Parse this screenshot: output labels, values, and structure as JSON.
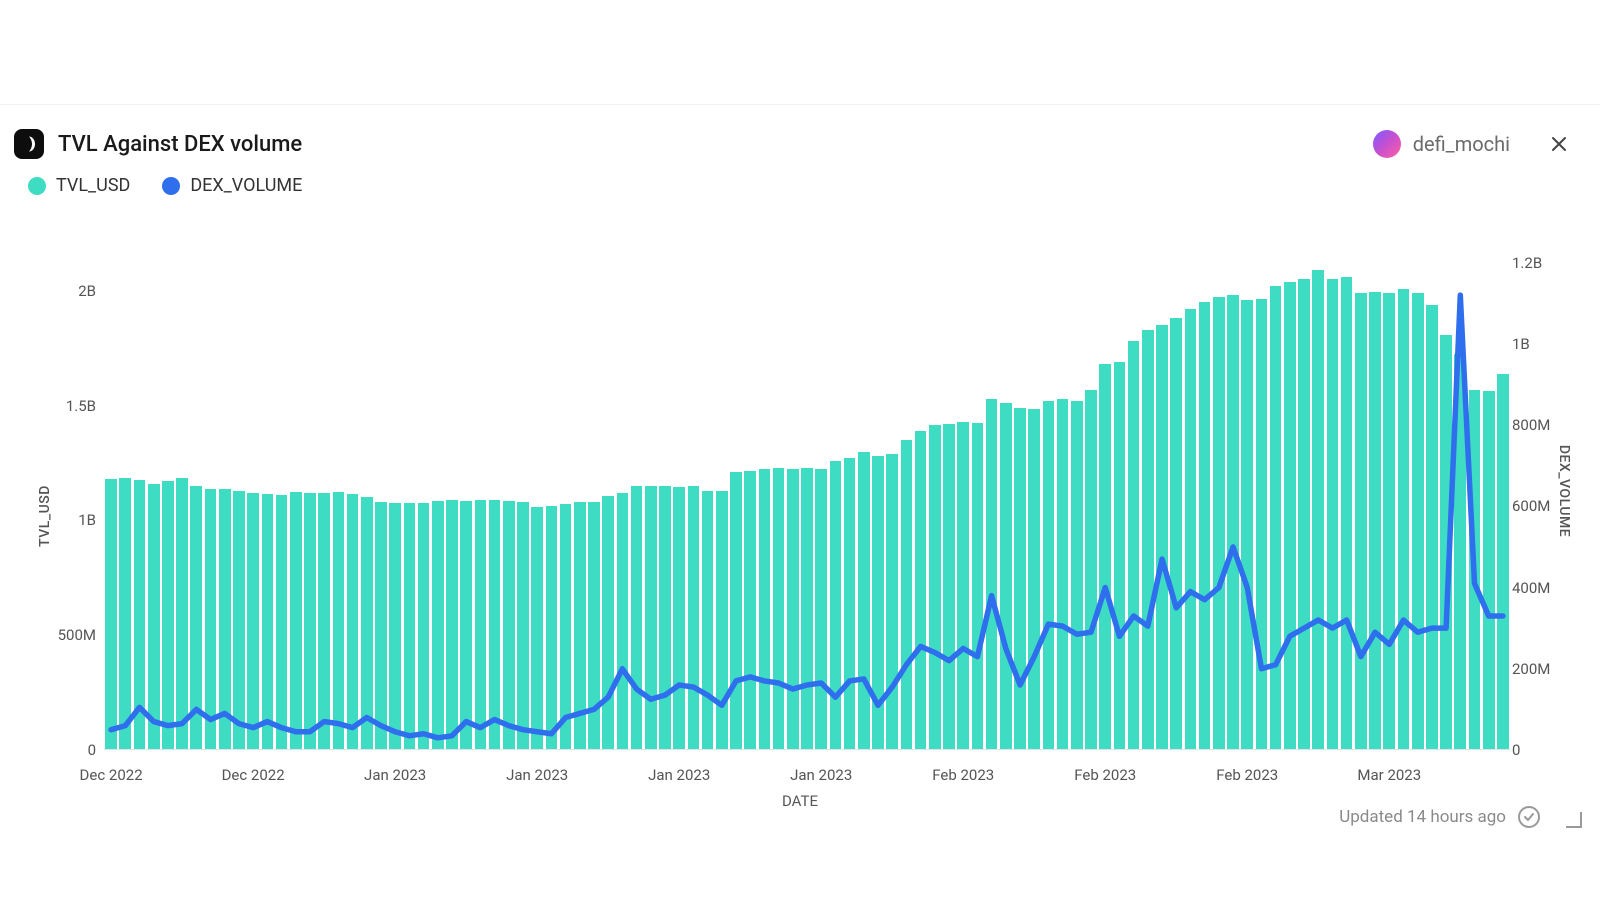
{
  "header": {
    "title": "TVL Against DEX volume",
    "author": "defi_mochi"
  },
  "legend": [
    {
      "label": "TVL_USD",
      "color": "#3fdcc4"
    },
    {
      "label": "DEX_VOLUME",
      "color": "#2f6fed"
    }
  ],
  "chart": {
    "type": "combo-bar-line",
    "background_color": "#ffffff",
    "bar_color": "#3fdcc4",
    "bar_gap_ratio": 0.18,
    "line_color": "#2f6fed",
    "line_width": 2.5,
    "left_axis": {
      "label": "TVL_USD",
      "min": 0,
      "max": 2300000000,
      "ticks": [
        {
          "value": 0,
          "label": "0"
        },
        {
          "value": 500000000,
          "label": "500M"
        },
        {
          "value": 1000000000,
          "label": "1B"
        },
        {
          "value": 1500000000,
          "label": "1.5B"
        },
        {
          "value": 2000000000,
          "label": "2B"
        }
      ]
    },
    "right_axis": {
      "label": "DEX_VOLUME",
      "min": 0,
      "max": 1300000000,
      "ticks": [
        {
          "value": 0,
          "label": "0"
        },
        {
          "value": 200000000,
          "label": "200M"
        },
        {
          "value": 400000000,
          "label": "400M"
        },
        {
          "value": 600000000,
          "label": "600M"
        },
        {
          "value": 800000000,
          "label": "800M"
        },
        {
          "value": 1000000000,
          "label": "1B"
        },
        {
          "value": 1200000000,
          "label": "1.2B"
        }
      ]
    },
    "x_axis": {
      "label": "DATE",
      "ticks": [
        {
          "index": 0,
          "label": "Dec 2022"
        },
        {
          "index": 10,
          "label": "Dec 2022"
        },
        {
          "index": 20,
          "label": "Jan 2023"
        },
        {
          "index": 30,
          "label": "Jan 2023"
        },
        {
          "index": 40,
          "label": "Jan 2023"
        },
        {
          "index": 50,
          "label": "Jan 2023"
        },
        {
          "index": 60,
          "label": "Feb 2023"
        },
        {
          "index": 70,
          "label": "Feb 2023"
        },
        {
          "index": 80,
          "label": "Feb 2023"
        },
        {
          "index": 90,
          "label": "Mar 2023"
        }
      ]
    },
    "tvl_usd": [
      1180000000,
      1185000000,
      1175000000,
      1160000000,
      1170000000,
      1185000000,
      1150000000,
      1135000000,
      1135000000,
      1130000000,
      1120000000,
      1115000000,
      1110000000,
      1125000000,
      1120000000,
      1120000000,
      1125000000,
      1115000000,
      1100000000,
      1080000000,
      1075000000,
      1075000000,
      1075000000,
      1085000000,
      1090000000,
      1085000000,
      1090000000,
      1090000000,
      1085000000,
      1080000000,
      1060000000,
      1065000000,
      1070000000,
      1080000000,
      1080000000,
      1105000000,
      1120000000,
      1150000000,
      1150000000,
      1150000000,
      1145000000,
      1150000000,
      1130000000,
      1130000000,
      1210000000,
      1215000000,
      1225000000,
      1230000000,
      1225000000,
      1230000000,
      1225000000,
      1260000000,
      1270000000,
      1300000000,
      1280000000,
      1290000000,
      1350000000,
      1390000000,
      1415000000,
      1420000000,
      1430000000,
      1425000000,
      1530000000,
      1510000000,
      1490000000,
      1485000000,
      1520000000,
      1530000000,
      1520000000,
      1570000000,
      1680000000,
      1690000000,
      1780000000,
      1830000000,
      1850000000,
      1880000000,
      1920000000,
      1950000000,
      1975000000,
      1980000000,
      1960000000,
      1965000000,
      2020000000,
      2040000000,
      2050000000,
      2090000000,
      2050000000,
      2060000000,
      1990000000,
      1995000000,
      1990000000,
      2010000000,
      1990000000,
      1940000000,
      1810000000,
      1725000000,
      1570000000,
      1565000000,
      1640000000
    ],
    "dex_volume": [
      50000000,
      60000000,
      105000000,
      70000000,
      60000000,
      65000000,
      100000000,
      75000000,
      90000000,
      65000000,
      55000000,
      70000000,
      55000000,
      45000000,
      45000000,
      70000000,
      65000000,
      55000000,
      80000000,
      60000000,
      45000000,
      35000000,
      40000000,
      30000000,
      35000000,
      70000000,
      55000000,
      75000000,
      60000000,
      50000000,
      45000000,
      40000000,
      80000000,
      90000000,
      100000000,
      130000000,
      200000000,
      150000000,
      125000000,
      135000000,
      160000000,
      155000000,
      135000000,
      110000000,
      170000000,
      180000000,
      170000000,
      165000000,
      150000000,
      160000000,
      165000000,
      130000000,
      170000000,
      175000000,
      110000000,
      155000000,
      210000000,
      255000000,
      240000000,
      220000000,
      250000000,
      230000000,
      380000000,
      250000000,
      160000000,
      230000000,
      310000000,
      305000000,
      285000000,
      290000000,
      400000000,
      280000000,
      330000000,
      305000000,
      470000000,
      350000000,
      390000000,
      370000000,
      400000000,
      500000000,
      400000000,
      200000000,
      210000000,
      280000000,
      300000000,
      320000000,
      300000000,
      320000000,
      230000000,
      290000000,
      260000000,
      320000000,
      290000000,
      300000000,
      300000000,
      1120000000,
      410000000,
      330000000,
      330000000
    ]
  },
  "footer": {
    "updated_text": "Updated 14 hours ago"
  }
}
